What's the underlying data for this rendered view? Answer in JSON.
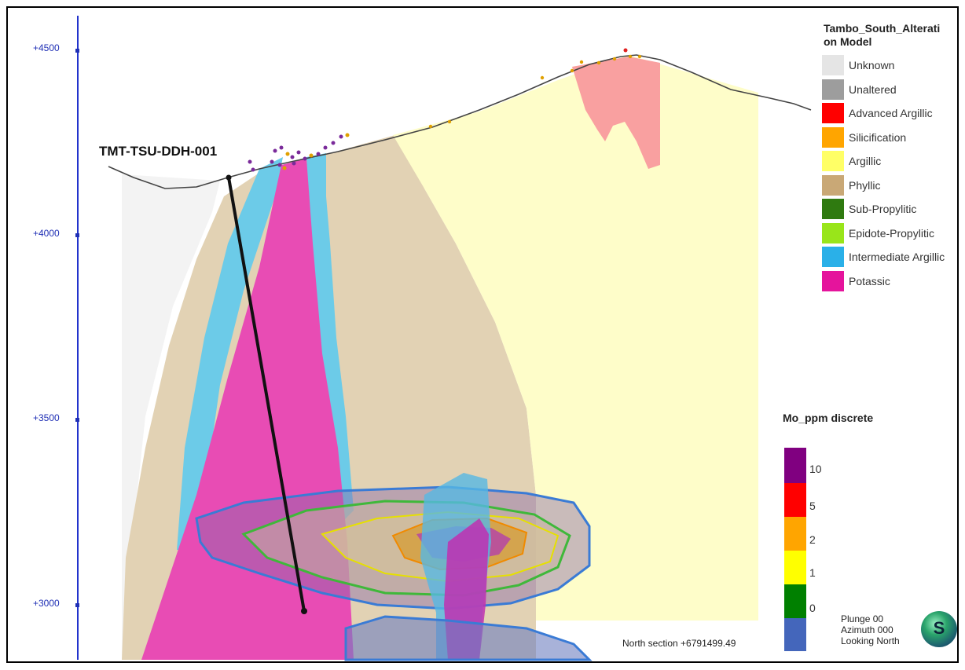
{
  "axis": {
    "elevation_labels": [
      "+4500",
      "+4000",
      "+3500",
      "+3000"
    ]
  },
  "drillhole": {
    "label": "TMT-TSU-DDH-001"
  },
  "legend": {
    "title": "Tambo_South_Alterati on Model",
    "items": [
      {
        "label": "Unknown",
        "color": "#e5e5e5"
      },
      {
        "label": "Unaltered",
        "color": "#9d9d9d"
      },
      {
        "label": "Advanced Argillic",
        "color": "#ff0000"
      },
      {
        "label": "Silicification",
        "color": "#ffa500"
      },
      {
        "label": "Argillic",
        "color": "#ffff66"
      },
      {
        "label": "Phyllic",
        "color": "#c9a876"
      },
      {
        "label": "Sub-Propylitic",
        "color": "#2f7a10"
      },
      {
        "label": "Epidote-Propylitic",
        "color": "#99e51a"
      },
      {
        "label": "Intermediate Argillic",
        "color": "#2ab0e8"
      },
      {
        "label": "Potassic",
        "color": "#e5149c"
      }
    ]
  },
  "mo_legend": {
    "title": "Mo_ppm discrete",
    "bands": [
      {
        "color": "#800080"
      },
      {
        "color": "#ff0000"
      },
      {
        "color": "#ffa500"
      },
      {
        "color": "#ffff00"
      },
      {
        "color": "#008000"
      },
      {
        "color": "#4466bb"
      }
    ],
    "labels": [
      "10",
      "5",
      "2",
      "1",
      "0"
    ]
  },
  "section": {
    "text": "North section +6791499.49"
  },
  "view": {
    "plunge": "Plunge 00",
    "azimuth": "Azimuth 000",
    "looking": "Looking North",
    "logo_letter": "S"
  }
}
